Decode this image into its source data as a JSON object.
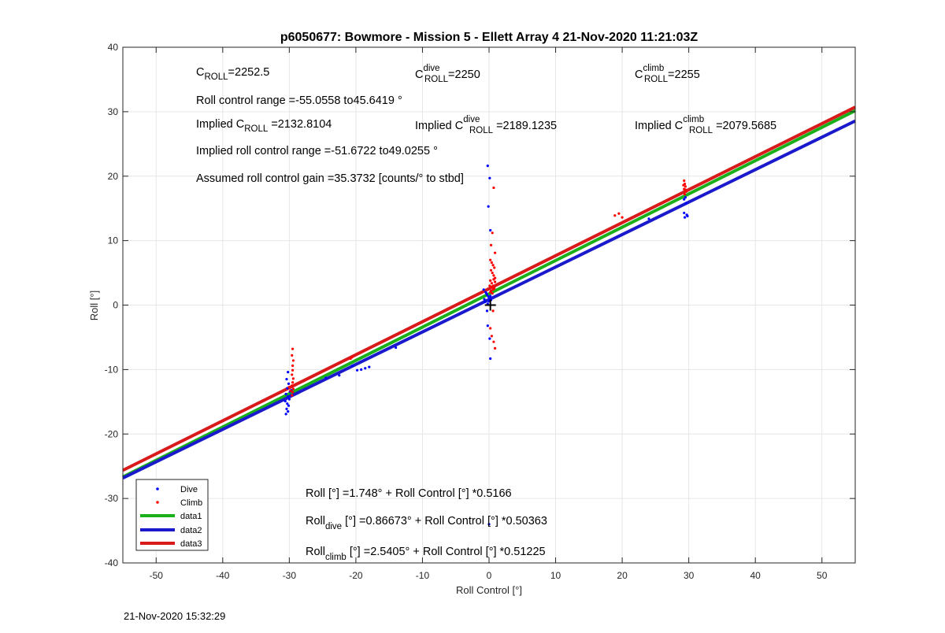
{
  "footer_timestamp": "21-Nov-2020 15:32:29",
  "chart_data": {
    "type": "scatter",
    "title": "p6050677: Bowmore - Mission 5 - Ellett Array 4 21-Nov-2020 11:21:03Z",
    "xlabel": "Roll Control [°]",
    "ylabel": "Roll [°]",
    "xlim": [
      -55,
      55
    ],
    "ylim": [
      -40,
      40
    ],
    "xticks": [
      -50,
      -40,
      -30,
      -20,
      -10,
      0,
      10,
      20,
      30,
      40,
      50
    ],
    "yticks": [
      -40,
      -30,
      -20,
      -10,
      0,
      10,
      20,
      30,
      40
    ],
    "grid": true,
    "legend_position": "bottom-left",
    "legend": [
      "Dive",
      "Climb",
      "data1",
      "data2",
      "data3"
    ],
    "colors": {
      "dive": "#0000ff",
      "climb": "#ff0000",
      "data1": "#1ab01a",
      "data2": "#1a1acc",
      "data3": "#d91a1a"
    },
    "series": [
      {
        "name": "Dive",
        "kind": "points",
        "color": "#0000ff",
        "points": [
          [
            -30.2,
            -10.4
          ],
          [
            -30.4,
            -11.5
          ],
          [
            -30.1,
            -12.2
          ],
          [
            -30.3,
            -12.9
          ],
          [
            -29.9,
            -13.4
          ],
          [
            -30.5,
            -13.8
          ],
          [
            -30.2,
            -14.2
          ],
          [
            -30.0,
            -14.6
          ],
          [
            -30.6,
            -14.9
          ],
          [
            -30.3,
            -15.3
          ],
          [
            -30.1,
            -15.6
          ],
          [
            -30.4,
            -16.1
          ],
          [
            -30.2,
            -16.5
          ],
          [
            -30.5,
            -16.9
          ],
          [
            -29.8,
            -14.0
          ],
          [
            -29.7,
            -13.2
          ],
          [
            -24.5,
            -11.3
          ],
          [
            -22.5,
            -10.9
          ],
          [
            -20.5,
            -9.4
          ],
          [
            -19.8,
            -10.1
          ],
          [
            -19.2,
            -10.0
          ],
          [
            -18.6,
            -9.8
          ],
          [
            -18.0,
            -9.6
          ],
          [
            -14.0,
            -6.6
          ],
          [
            -0.8,
            2.4
          ],
          [
            -0.5,
            2.0
          ],
          [
            -0.3,
            1.6
          ],
          [
            -0.1,
            1.3
          ],
          [
            0.1,
            1.0
          ],
          [
            0.3,
            0.8
          ],
          [
            -0.6,
            0.5
          ],
          [
            -0.2,
            0.2
          ],
          [
            0.0,
            0.6
          ],
          [
            0.2,
            1.4
          ],
          [
            -0.4,
            1.8
          ],
          [
            -0.7,
            0.9
          ],
          [
            -0.2,
            21.6
          ],
          [
            0.1,
            19.7
          ],
          [
            -0.1,
            15.3
          ],
          [
            0.2,
            11.6
          ],
          [
            -0.3,
            -0.9
          ],
          [
            -0.2,
            -3.2
          ],
          [
            0.1,
            -5.2
          ],
          [
            0.2,
            -8.3
          ],
          [
            0.0,
            -34.0
          ],
          [
            29.3,
            14.3
          ],
          [
            29.7,
            14.0
          ],
          [
            29.4,
            13.6
          ],
          [
            29.8,
            13.8
          ],
          [
            29.5,
            16.7
          ],
          [
            29.3,
            16.4
          ],
          [
            29.6,
            15.8
          ],
          [
            24.0,
            13.4
          ]
        ]
      },
      {
        "name": "Climb",
        "kind": "points",
        "color": "#ff0000",
        "points": [
          [
            -29.5,
            -6.8
          ],
          [
            -29.6,
            -7.8
          ],
          [
            -29.4,
            -8.6
          ],
          [
            -29.5,
            -9.4
          ],
          [
            -29.5,
            -10.1
          ],
          [
            -29.6,
            -10.8
          ],
          [
            -29.4,
            -11.4
          ],
          [
            -29.5,
            -12.0
          ],
          [
            -29.6,
            -12.5
          ],
          [
            -29.4,
            -13.0
          ],
          [
            -29.5,
            -13.5
          ],
          [
            -29.6,
            -14.0
          ],
          [
            -30.0,
            -12.7
          ],
          [
            -29.8,
            -13.3
          ],
          [
            -20.8,
            -8.3
          ],
          [
            -20.6,
            -8.1
          ],
          [
            0.2,
            7.0
          ],
          [
            0.4,
            6.6
          ],
          [
            0.6,
            6.2
          ],
          [
            0.8,
            5.8
          ],
          [
            0.3,
            5.4
          ],
          [
            0.5,
            5.0
          ],
          [
            0.7,
            4.6
          ],
          [
            0.9,
            4.2
          ],
          [
            0.2,
            3.8
          ],
          [
            0.4,
            3.4
          ],
          [
            0.6,
            3.0
          ],
          [
            0.8,
            2.6
          ],
          [
            0.3,
            2.2
          ],
          [
            0.5,
            1.8
          ],
          [
            0.7,
            4.0
          ],
          [
            0.1,
            3.0
          ],
          [
            0.9,
            3.6
          ],
          [
            0.4,
            2.8
          ],
          [
            0.6,
            2.4
          ],
          [
            0.2,
            2.0
          ],
          [
            0.7,
            18.2
          ],
          [
            0.5,
            11.2
          ],
          [
            0.9,
            8.1
          ],
          [
            0.3,
            9.3
          ],
          [
            0.6,
            -0.9
          ],
          [
            0.4,
            -4.8
          ],
          [
            0.7,
            -5.7
          ],
          [
            0.9,
            -6.7
          ],
          [
            0.2,
            -3.6
          ],
          [
            18.9,
            13.9
          ],
          [
            19.5,
            14.2
          ],
          [
            20.0,
            13.6
          ],
          [
            29.3,
            19.3
          ],
          [
            29.4,
            18.8
          ],
          [
            29.5,
            18.4
          ],
          [
            29.3,
            18.0
          ],
          [
            29.6,
            17.6
          ],
          [
            29.4,
            17.2
          ],
          [
            29.2,
            18.6
          ],
          [
            29.5,
            17.9
          ]
        ]
      },
      {
        "name": "data1",
        "kind": "line",
        "color": "#1ab01a",
        "x": [
          -55,
          55
        ],
        "y": [
          -26.665,
          30.161
        ]
      },
      {
        "name": "data2",
        "kind": "line",
        "color": "#1a1acc",
        "x": [
          -55,
          55
        ],
        "y": [
          -26.833,
          28.566
        ]
      },
      {
        "name": "data3",
        "kind": "line",
        "color": "#d91a1a",
        "x": [
          -55,
          55
        ],
        "y": [
          -25.633,
          30.714
        ]
      }
    ],
    "annotations": {
      "c_roll": {
        "base": "C",
        "sub": "ROLL",
        "value": "=2252.5"
      },
      "c_roll_dive": {
        "base": "C",
        "sup": "dive",
        "sub": "ROLL",
        "value": "=2250"
      },
      "c_roll_climb": {
        "base": "C",
        "sup": "climb",
        "sub": "ROLL",
        "value": "=2255"
      },
      "roll_control_range": "Roll control range =-55.0558 to45.6419 °",
      "implied_c_roll": {
        "prefix": "Implied C",
        "sub": "ROLL",
        "value": " =2132.8104"
      },
      "implied_c_roll_dive": {
        "prefix": "Implied C",
        "sup": "dive",
        "sub": "ROLL",
        "value": " =2189.1235"
      },
      "implied_c_roll_climb": {
        "prefix": "Implied C",
        "sup": "climb",
        "sub": "ROLL",
        "value": " =2079.5685"
      },
      "implied_range": "Implied roll control range =-51.6722 to49.0255 °",
      "assumed_gain": "Assumed roll control gain =35.3732 [counts/° to stbd]",
      "fit_all": "Roll [°] =1.748° + Roll Control [°] *0.5166",
      "fit_dive": {
        "base": "Roll",
        "sub": "dive",
        "value": " [°] =0.86673° + Roll Control [°] *0.50363"
      },
      "fit_climb": {
        "base": "Roll",
        "sub": "climb",
        "value": " [°] =2.5405° + Roll Control [°] *0.51225"
      }
    }
  }
}
